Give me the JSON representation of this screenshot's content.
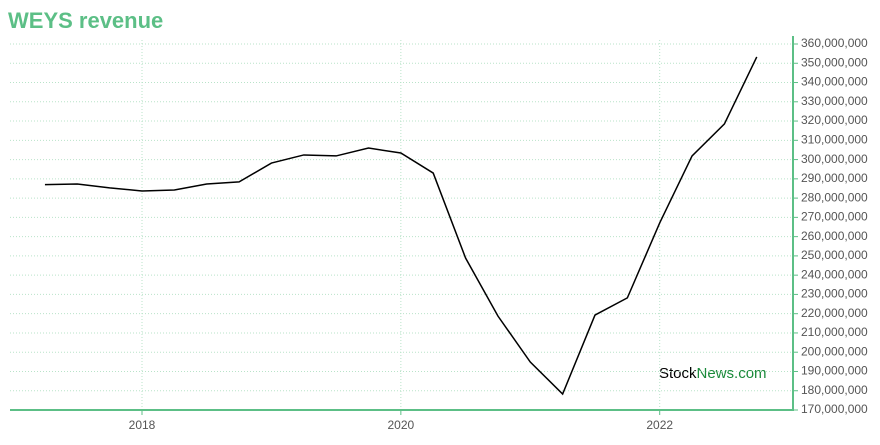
{
  "chart_data": {
    "type": "line",
    "title": "WEYS revenue",
    "x": [
      2017.25,
      2017.5,
      2017.75,
      2018.0,
      2018.25,
      2018.5,
      2018.75,
      2019.0,
      2019.25,
      2019.5,
      2019.75,
      2020.0,
      2020.25,
      2020.5,
      2020.75,
      2021.0,
      2021.25,
      2021.5,
      2021.75,
      2022.0,
      2022.25,
      2022.5,
      2022.75
    ],
    "values": [
      287000000,
      287300000,
      285300000,
      283700000,
      284200000,
      287300000,
      288400000,
      298200000,
      302400000,
      301900000,
      306000000,
      303400000,
      293000000,
      248900000,
      218800000,
      194900000,
      178300000,
      219300000,
      228200000,
      267100000,
      301900000,
      318500000,
      353300000
    ],
    "color": "#000000",
    "xlim": [
      2016.98,
      2023.03
    ],
    "xticks": [
      2018,
      2020,
      2022
    ],
    "ylim": [
      170000000,
      360000000
    ],
    "yticks": [
      {
        "value": 170000000,
        "label": "170,000,000"
      },
      {
        "value": 180000000,
        "label": "180,000,000"
      },
      {
        "value": 190000000,
        "label": "190,000,000"
      },
      {
        "value": 200000000,
        "label": "200,000,000"
      },
      {
        "value": 210000000,
        "label": "210,000,000"
      },
      {
        "value": 220000000,
        "label": "220,000,000"
      },
      {
        "value": 230000000,
        "label": "230,000,000"
      },
      {
        "value": 240000000,
        "label": "240,000,000"
      },
      {
        "value": 250000000,
        "label": "250,000,000"
      },
      {
        "value": 260000000,
        "label": "260,000,000"
      },
      {
        "value": 270000000,
        "label": "270,000,000"
      },
      {
        "value": 280000000,
        "label": "280,000,000"
      },
      {
        "value": 290000000,
        "label": "290,000,000"
      },
      {
        "value": 300000000,
        "label": "300,000,000"
      },
      {
        "value": 310000000,
        "label": "310,000,000"
      },
      {
        "value": 320000000,
        "label": "320,000,000"
      },
      {
        "value": 330000000,
        "label": "330,000,000"
      },
      {
        "value": 340000000,
        "label": "340,000,000"
      },
      {
        "value": 350000000,
        "label": "350,000,000"
      },
      {
        "value": 360000000,
        "label": "360,000,000"
      }
    ],
    "grid": true,
    "watermark": [
      "Stock",
      "News.com"
    ]
  }
}
